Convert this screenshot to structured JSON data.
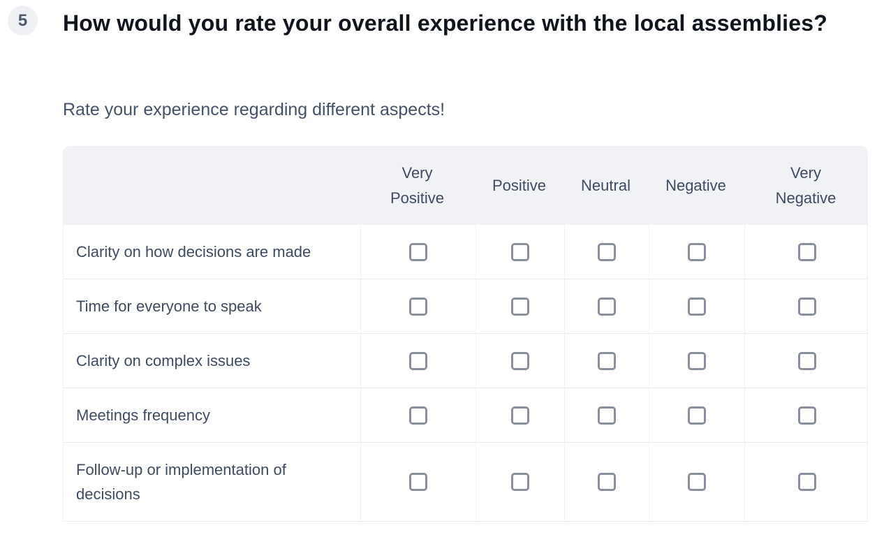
{
  "question": {
    "number": "5",
    "title": "How would you rate your overall experience with the local assemblies?",
    "subtitle": "Rate your experience regarding different aspects!"
  },
  "matrix": {
    "columns": [
      "Very Positive",
      "Positive",
      "Neutral",
      "Negative",
      "Very Negative"
    ],
    "rows": [
      "Clarity on how decisions are made",
      "Time for everyone to speak",
      "Clarity on complex issues",
      "Meetings frequency",
      "Follow-up or implementation of decisions"
    ],
    "checkbox_state": "unchecked"
  },
  "colors": {
    "header_bg": "#f1f2f6",
    "title_text": "#10151d",
    "body_text": "#3e4b60",
    "row_border": "#e8eaf0",
    "column_border": "#f0f1f5",
    "checkbox_border": "#8a8f9d",
    "badge_bg": "#eef0f4",
    "badge_text": "#4e5a6e"
  }
}
